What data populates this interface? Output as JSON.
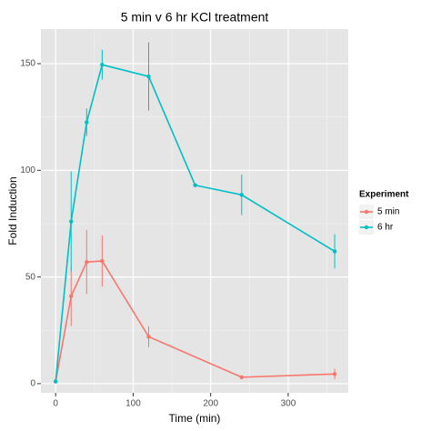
{
  "chart_data": {
    "type": "line",
    "title": "5 min v 6 hr KCl treatment",
    "x_label": "Time (min)",
    "y_label": "Fold Induction",
    "legend_title": "Experiment",
    "legend": "right",
    "grid": true,
    "series": [
      {
        "name": "5 min",
        "color": "#F8766D",
        "x": [
          0,
          20,
          40,
          60,
          120,
          240,
          360
        ],
        "values": [
          1,
          41,
          57,
          57.5,
          22,
          3,
          4.5
        ],
        "errors": [
          0,
          14,
          15,
          12,
          5,
          0.5,
          2.5
        ]
      },
      {
        "name": "6 hr",
        "color": "#00BFC4",
        "x": [
          0,
          20,
          40,
          60,
          120,
          180,
          240,
          360
        ],
        "values": [
          1,
          76,
          122.5,
          149.5,
          144,
          93,
          88.5,
          62
        ],
        "errors": [
          0,
          23.5,
          6.5,
          7,
          16,
          0,
          9.5,
          8
        ]
      }
    ],
    "xlim": [
      -19,
      377.5
    ],
    "xticks": [
      0,
      100,
      200,
      300
    ],
    "ylim": [
      -4.3,
      166.2
    ],
    "yticks": [
      0,
      50,
      100,
      150
    ]
  }
}
